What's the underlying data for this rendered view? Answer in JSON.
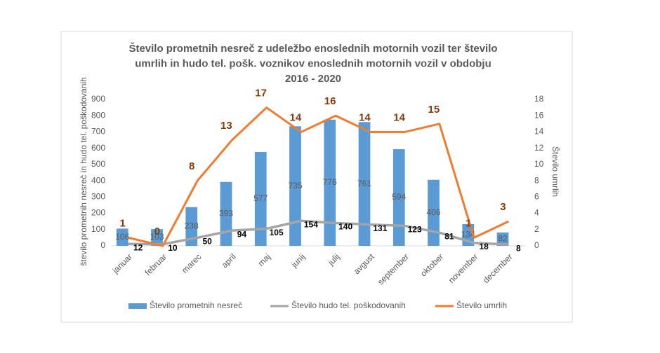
{
  "chart_data": {
    "type": "combo",
    "title": [
      "Število prometnih nesreč z udeležbo enoslednih motornih vozil ter število",
      "umrlih in hudo tel. pošk. voznikov enoslednih motornih vozil v obdobju",
      "2016 - 2020"
    ],
    "y_label": "število prometnih nesreč in hudo tel. poškodovanih",
    "y2_label": "Število umrlih",
    "categories": [
      "januar",
      "februar",
      "marec",
      "april",
      "maj",
      "junij",
      "julij",
      "avgust",
      "september",
      "oktober",
      "november",
      "december"
    ],
    "series": [
      {
        "name": "Število prometnih nesreč",
        "type": "bar",
        "color": "#5b9bd5",
        "values": [
          106,
          103,
          238,
          393,
          577,
          735,
          776,
          761,
          594,
          406,
          134,
          82
        ]
      },
      {
        "name": "Število hudo tel. poškodovanih",
        "type": "line",
        "color": "#a5a5a5",
        "values": [
          12,
          10,
          50,
          94,
          105,
          154,
          140,
          131,
          123,
          81,
          18,
          8
        ]
      },
      {
        "name": "Število umrlih",
        "type": "line",
        "axis": "y2",
        "color": "#ed7d31",
        "values": [
          1,
          0,
          8,
          13,
          17,
          14,
          16,
          14,
          14,
          15,
          1,
          3
        ]
      }
    ],
    "ylim": [
      0,
      900
    ],
    "yticks": [
      0,
      100,
      200,
      300,
      400,
      500,
      600,
      700,
      800,
      900
    ],
    "y2lim": [
      0,
      18
    ],
    "y2ticks": [
      0,
      2,
      4,
      6,
      8,
      10,
      12,
      14,
      16,
      18
    ],
    "grid": false,
    "legend": "bottom"
  }
}
